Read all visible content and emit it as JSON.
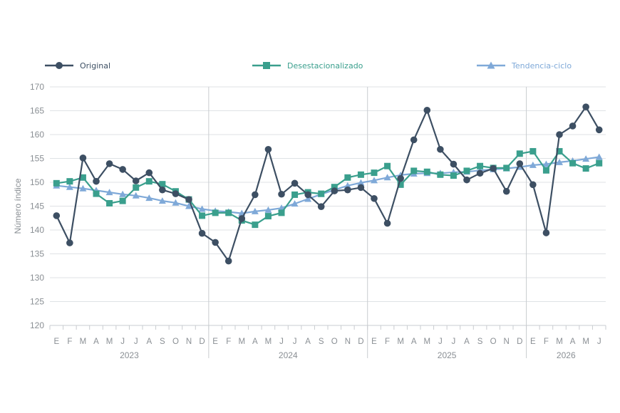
{
  "chart_data": {
    "type": "line",
    "ylabel": "Número índice",
    "ylim": [
      120,
      170
    ],
    "yticks": [
      120,
      125,
      130,
      135,
      140,
      145,
      150,
      155,
      160,
      165,
      170
    ],
    "grid": "horizontal",
    "legend_placement": "top",
    "month_labels": [
      "E",
      "F",
      "M",
      "A",
      "M",
      "J",
      "J",
      "A",
      "S",
      "O",
      "N",
      "D",
      "E",
      "F",
      "M",
      "A",
      "M",
      "J",
      "J",
      "A",
      "S",
      "O",
      "N",
      "D",
      "E",
      "F",
      "M",
      "A",
      "M",
      "J",
      "J",
      "A",
      "S",
      "O",
      "N",
      "D",
      "E",
      "F",
      "M",
      "A",
      "M",
      "J"
    ],
    "years": [
      {
        "label": "2023",
        "start": 0,
        "end": 11
      },
      {
        "label": "2024",
        "start": 12,
        "end": 23
      },
      {
        "label": "2025",
        "start": 24,
        "end": 35
      },
      {
        "label": "2026",
        "start": 36,
        "end": 41
      }
    ],
    "series": [
      {
        "name": "Original",
        "color": "#3d4f63",
        "marker": "circle",
        "values": [
          143.0,
          137.3,
          155.1,
          150.2,
          153.9,
          152.7,
          150.3,
          152.0,
          148.4,
          147.6,
          146.4,
          139.3,
          137.4,
          133.5,
          142.4,
          147.4,
          156.9,
          147.5,
          149.8,
          147.4,
          144.9,
          148.2,
          148.4,
          148.9,
          146.6,
          141.4,
          150.8,
          158.9,
          165.1,
          156.9,
          153.8,
          150.5,
          151.9,
          152.9,
          148.1,
          153.9,
          149.5,
          139.4,
          160.0,
          161.8,
          165.8,
          161.0
        ]
      },
      {
        "name": "Desestacionalizado",
        "color": "#3a9f8d",
        "marker": "square",
        "values": [
          149.8,
          150.2,
          151.0,
          147.6,
          145.6,
          146.1,
          148.9,
          150.2,
          149.6,
          148.1,
          146.4,
          143.0,
          143.6,
          143.6,
          142.0,
          141.1,
          142.9,
          143.6,
          147.4,
          147.9,
          147.6,
          149.0,
          151.0,
          151.6,
          152.0,
          153.4,
          149.5,
          152.4,
          152.2,
          151.6,
          151.4,
          152.4,
          153.4,
          153.0,
          153.0,
          156.0,
          156.5,
          152.5,
          156.5,
          154.0,
          152.9,
          154.0
        ]
      },
      {
        "name": "Tendencia-ciclo",
        "color": "#7fa9d8",
        "marker": "triangle",
        "values": [
          149.3,
          149.0,
          148.7,
          148.3,
          147.9,
          147.5,
          147.2,
          146.7,
          146.1,
          145.7,
          145.0,
          144.4,
          144.0,
          143.8,
          143.5,
          143.9,
          144.2,
          144.6,
          145.5,
          146.5,
          147.5,
          148.4,
          149.3,
          149.9,
          150.4,
          151.0,
          151.5,
          151.8,
          151.9,
          151.9,
          152.1,
          152.2,
          152.5,
          152.7,
          152.9,
          153.2,
          153.6,
          153.8,
          154.2,
          154.5,
          154.9,
          155.3
        ]
      }
    ]
  }
}
